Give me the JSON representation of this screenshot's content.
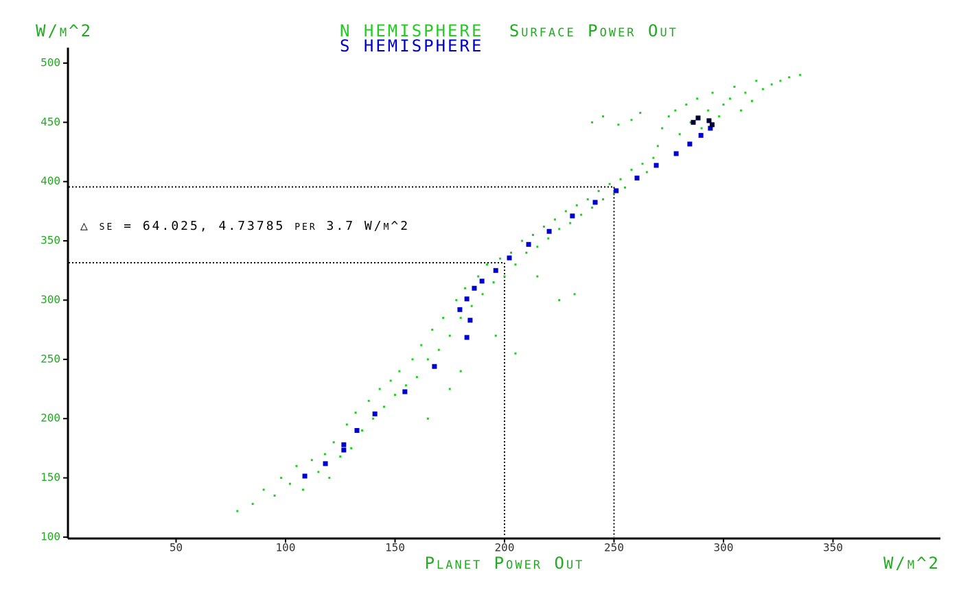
{
  "chart_data": {
    "type": "scatter",
    "title": "Surface Power Out",
    "title_color": "#22aa22",
    "y_unit": "W/m^2",
    "x_label": "Planet Power Out",
    "x_unit": "W/m^2",
    "xlim": [
      0,
      400
    ],
    "xticks": [
      50,
      100,
      150,
      200,
      250,
      300,
      350
    ],
    "ylim": [
      100,
      513
    ],
    "yticks": [
      100,
      150,
      200,
      250,
      300,
      350,
      400,
      450,
      500
    ],
    "annotation": "△ se = 64.025, 4.73785 per 3.7 W/m^2",
    "reference_lines": [
      {
        "x": 200,
        "y": 331.5
      },
      {
        "x": 250,
        "y": 395.5
      }
    ],
    "series": [
      {
        "name": "N HEMISPHERE",
        "color": "#22cc22",
        "x": [
          78,
          85,
          90,
          95,
          98,
          102,
          105,
          108,
          112,
          115,
          118,
          120,
          122,
          125,
          128,
          130,
          132,
          135,
          138,
          140,
          143,
          145,
          148,
          150,
          152,
          155,
          158,
          160,
          162,
          165,
          167,
          170,
          172,
          175,
          178,
          180,
          182,
          185,
          188,
          190,
          192,
          195,
          198,
          200,
          203,
          205,
          208,
          210,
          213,
          215,
          218,
          220,
          223,
          225,
          228,
          230,
          233,
          235,
          238,
          240,
          243,
          245,
          248,
          250,
          253,
          255,
          258,
          260,
          263,
          265,
          268,
          270,
          272,
          275,
          278,
          280,
          283,
          285,
          288,
          290,
          293,
          295,
          298,
          300,
          303,
          305,
          308,
          310,
          313,
          315,
          318,
          322,
          326,
          330,
          335,
          240,
          245,
          252,
          258,
          262,
          215,
          225,
          232,
          196,
          205,
          180,
          175,
          165
        ],
        "values": [
          122,
          128,
          140,
          135,
          150,
          145,
          160,
          140,
          165,
          155,
          170,
          150,
          180,
          168,
          195,
          175,
          205,
          190,
          215,
          200,
          225,
          210,
          232,
          220,
          240,
          228,
          250,
          235,
          262,
          250,
          275,
          258,
          285,
          270,
          300,
          285,
          310,
          295,
          320,
          305,
          330,
          315,
          335,
          320,
          340,
          330,
          350,
          340,
          355,
          345,
          362,
          352,
          368,
          360,
          375,
          365,
          380,
          372,
          385,
          378,
          392,
          385,
          398,
          390,
          402,
          395,
          410,
          402,
          415,
          408,
          420,
          430,
          445,
          455,
          460,
          440,
          465,
          450,
          470,
          445,
          460,
          475,
          455,
          465,
          470,
          480,
          460,
          475,
          468,
          485,
          478,
          482,
          485,
          488,
          490,
          450,
          455,
          448,
          452,
          458,
          320,
          300,
          305,
          270,
          255,
          240,
          225,
          200
        ]
      },
      {
        "name": "S HEMISPHERE",
        "color": "#0000cc",
        "x": [
          108.8,
          118.2,
          126.6,
          126.6,
          132.6,
          140.8,
          154.5,
          168,
          179.6,
          182.8,
          182.8,
          184.3,
          186.2,
          189.7,
          196,
          202.2,
          211,
          220.4,
          231,
          241.4,
          251,
          260.5,
          269.3,
          278.4,
          284.6,
          289.7,
          294
        ],
        "values": [
          151.5,
          162,
          178,
          173.5,
          190,
          204,
          222.7,
          244,
          292,
          301,
          268.5,
          283,
          310,
          316,
          325,
          335.6,
          347,
          358,
          371,
          382.5,
          392.3,
          403,
          413.7,
          423.6,
          431.7,
          439,
          445
        ]
      },
      {
        "color": "#000033",
        "x": [
          286.2,
          288.4,
          293.4,
          294.8
        ],
        "values": [
          450,
          453.7,
          451.4,
          448
        ]
      }
    ]
  }
}
